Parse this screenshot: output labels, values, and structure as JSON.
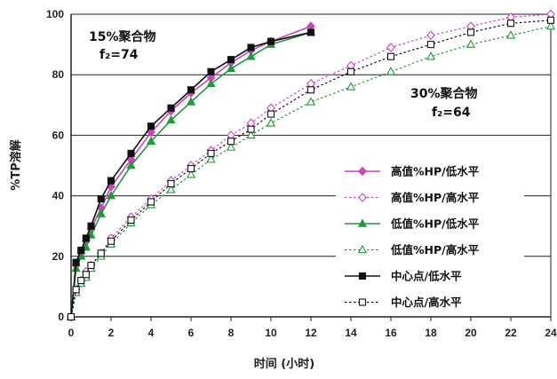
{
  "chart_data": {
    "type": "line",
    "xlabel": "时间 (小时)",
    "ylabel": "%TP溶解",
    "xlim": [
      0,
      24
    ],
    "ylim": [
      0,
      100
    ],
    "x_ticks": [
      0,
      2,
      4,
      6,
      8,
      10,
      12,
      14,
      16,
      18,
      20,
      22,
      24
    ],
    "y_ticks": [
      0,
      20,
      40,
      60,
      80,
      100
    ],
    "grid": "horizontal",
    "legend_position": "right",
    "annotations": [
      {
        "line1": "15%聚合物",
        "line2": "f₂=74"
      },
      {
        "line1": "30%聚合物",
        "line2": "f₂=64"
      }
    ],
    "colors": {
      "magenta": "#cc44bb",
      "green": "#1f9a3a",
      "black": "#111111"
    },
    "series": [
      {
        "name": "高值%HP/低水平",
        "style": {
          "color": "#cc44bb",
          "marker": "diamond",
          "filled": true,
          "dashed": false
        },
        "x": [
          0,
          0.25,
          0.5,
          0.75,
          1,
          1.5,
          2,
          3,
          4,
          5,
          6,
          7,
          8,
          9,
          10,
          12
        ],
        "y": [
          0,
          17,
          21,
          25,
          29,
          36,
          43,
          52,
          61,
          68,
          74,
          79,
          84,
          88,
          91,
          96
        ]
      },
      {
        "name": "高值%HP/高水平",
        "style": {
          "color": "#cc44bb",
          "marker": "diamond",
          "filled": false,
          "dashed": true
        },
        "x": [
          0,
          0.25,
          0.5,
          0.75,
          1,
          1.5,
          2,
          3,
          4,
          5,
          6,
          7,
          8,
          9,
          10,
          12,
          14,
          16,
          18,
          20,
          22,
          24
        ],
        "y": [
          0,
          9,
          12,
          15,
          17,
          21,
          26,
          33,
          39,
          45,
          50,
          55,
          60,
          64,
          69,
          77,
          83,
          89,
          93,
          96,
          99,
          100
        ]
      },
      {
        "name": "低值%HP/低水平",
        "style": {
          "color": "#1f9a3a",
          "marker": "triangle",
          "filled": true,
          "dashed": false
        },
        "x": [
          0,
          0.25,
          0.5,
          0.75,
          1,
          1.5,
          2,
          3,
          4,
          5,
          6,
          7,
          8,
          9,
          10,
          12
        ],
        "y": [
          0,
          16,
          20,
          23,
          27,
          34,
          40,
          50,
          58,
          65,
          71,
          77,
          82,
          86,
          90,
          94
        ]
      },
      {
        "name": "低值%HP/高水平",
        "style": {
          "color": "#1f9a3a",
          "marker": "triangle",
          "filled": false,
          "dashed": true
        },
        "x": [
          0,
          0.25,
          0.5,
          0.75,
          1,
          1.5,
          2,
          3,
          4,
          5,
          6,
          7,
          8,
          9,
          10,
          12,
          14,
          16,
          18,
          20,
          22,
          24
        ],
        "y": [
          0,
          8,
          11,
          13,
          16,
          20,
          24,
          31,
          37,
          42,
          47,
          52,
          56,
          60,
          64,
          71,
          76,
          81,
          86,
          90,
          93,
          96
        ]
      },
      {
        "name": "中心点/低水平",
        "style": {
          "color": "#111111",
          "marker": "square",
          "filled": true,
          "dashed": false
        },
        "x": [
          0,
          0.25,
          0.5,
          0.75,
          1,
          1.5,
          2,
          3,
          4,
          5,
          6,
          7,
          8,
          9,
          10,
          12
        ],
        "y": [
          0,
          18,
          22,
          26,
          30,
          39,
          45,
          54,
          63,
          69,
          75,
          81,
          85,
          89,
          91,
          94
        ]
      },
      {
        "name": "中心点/高水平",
        "style": {
          "color": "#111111",
          "marker": "square",
          "filled": false,
          "dashed": true
        },
        "x": [
          0,
          0.25,
          0.5,
          0.75,
          1,
          1.5,
          2,
          3,
          4,
          5,
          6,
          7,
          8,
          9,
          10,
          12,
          14,
          16,
          18,
          20,
          22,
          24
        ],
        "y": [
          0,
          9,
          12,
          14,
          17,
          21,
          25,
          32,
          38,
          44,
          49,
          54,
          58,
          62,
          67,
          75,
          81,
          86,
          90,
          94,
          97,
          98
        ]
      }
    ]
  }
}
